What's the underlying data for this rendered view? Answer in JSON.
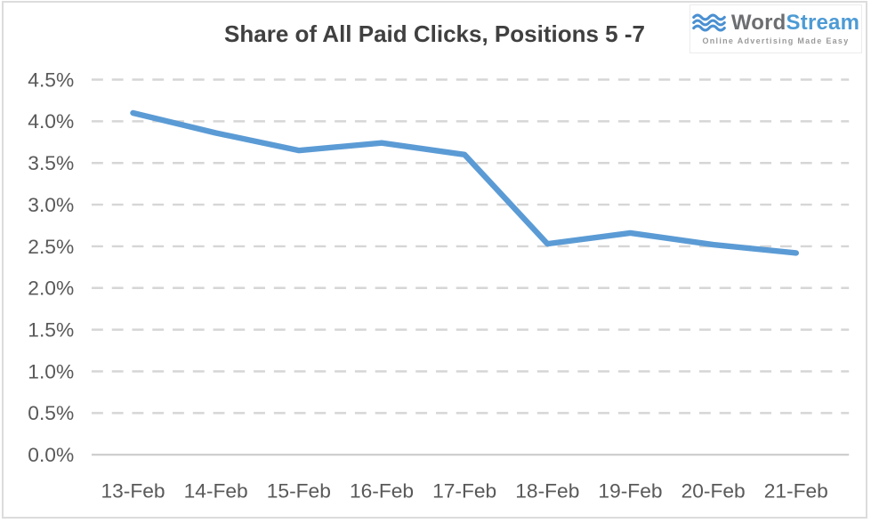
{
  "header": {
    "title": "Share of All Paid Clicks, Positions 5 -7"
  },
  "logo": {
    "word": "Word",
    "stream": "Stream",
    "tagline": "Online Advertising Made Easy",
    "word_color": "#6d6e71",
    "stream_color": "#4d9bd5",
    "wave_color": "#4a90d2"
  },
  "chart_data": {
    "type": "line",
    "title": "Share of All Paid Clicks, Positions 5 -7",
    "categories": [
      "13-Feb",
      "14-Feb",
      "15-Feb",
      "16-Feb",
      "17-Feb",
      "18-Feb",
      "19-Feb",
      "20-Feb",
      "21-Feb"
    ],
    "values": [
      4.1,
      3.86,
      3.65,
      3.74,
      3.6,
      2.53,
      2.66,
      2.52,
      2.42
    ],
    "xlabel": "",
    "ylabel": "",
    "ylim": [
      0,
      4.5
    ],
    "ytick_values": [
      0,
      0.5,
      1.0,
      1.5,
      2.0,
      2.5,
      3.0,
      3.5,
      4.0,
      4.5
    ],
    "ytick_labels": [
      "0.0%",
      "0.5%",
      "1.0%",
      "1.5%",
      "2.0%",
      "2.5%",
      "3.0%",
      "3.5%",
      "4.0%",
      "4.5%"
    ],
    "grid": "horizontal-dashed",
    "legend": "none",
    "line_color": "#5B9BD5",
    "line_width": 6.5,
    "gridline_color": "#d6d6d6",
    "axis_line_color": "#c8c8c8",
    "tick_label_color": "#595959"
  }
}
